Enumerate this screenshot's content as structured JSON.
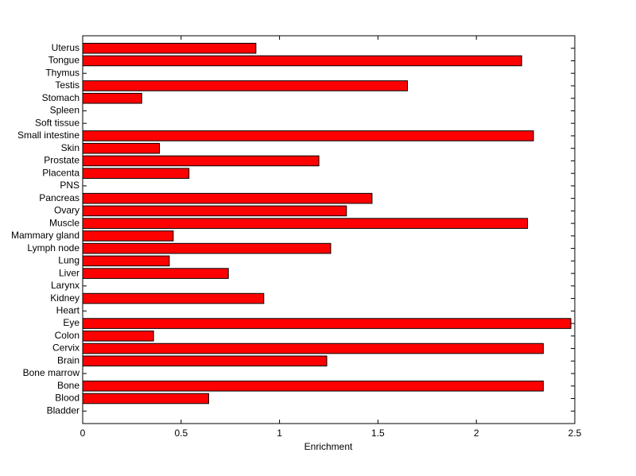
{
  "chart_data": {
    "type": "barh",
    "xlabel": "Enrichment",
    "categories": [
      "Bladder",
      "Blood",
      "Bone",
      "Bone marrow",
      "Brain",
      "Cervix",
      "Colon",
      "Eye",
      "Heart",
      "Kidney",
      "Larynx",
      "Liver",
      "Lung",
      "Lymph node",
      "Mammary gland",
      "Muscle",
      "Ovary",
      "Pancreas",
      "PNS",
      "Placenta",
      "Prostate",
      "Skin",
      "Small intestine",
      "Soft tissue",
      "Spleen",
      "Stomach",
      "Testis",
      "Thymus",
      "Tongue",
      "Uterus"
    ],
    "values": [
      0,
      0.64,
      2.34,
      0,
      1.24,
      2.34,
      0.36,
      2.48,
      0,
      0.92,
      0,
      0.74,
      0.44,
      1.26,
      0.46,
      2.26,
      1.34,
      1.47,
      0,
      0.54,
      1.2,
      0.39,
      2.29,
      0,
      0,
      0.3,
      1.65,
      0,
      2.23,
      0.88
    ],
    "color": "#ff0000",
    "xlim": [
      0,
      2.5
    ],
    "xticks": [
      0,
      0.5,
      1,
      1.5,
      2,
      2.5
    ]
  }
}
